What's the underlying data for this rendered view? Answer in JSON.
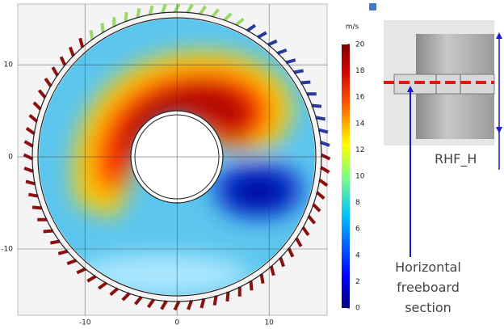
{
  "chart_data": {
    "type": "contour",
    "xlim": [
      -17.3,
      16.3
    ],
    "ylim": [
      -17.2,
      16.6
    ],
    "xticks": [
      -10,
      0,
      10
    ],
    "yticks": [
      -10,
      0,
      10
    ],
    "grid": true,
    "colorbar": {
      "label": "m/s",
      "lim": [
        0,
        20
      ],
      "ticks": [
        0,
        2,
        4,
        6,
        8,
        10,
        12,
        14,
        16,
        18,
        20
      ]
    },
    "annotations": {
      "probe": "RHF_H",
      "section": "Horizontal freeboard section"
    }
  }
}
